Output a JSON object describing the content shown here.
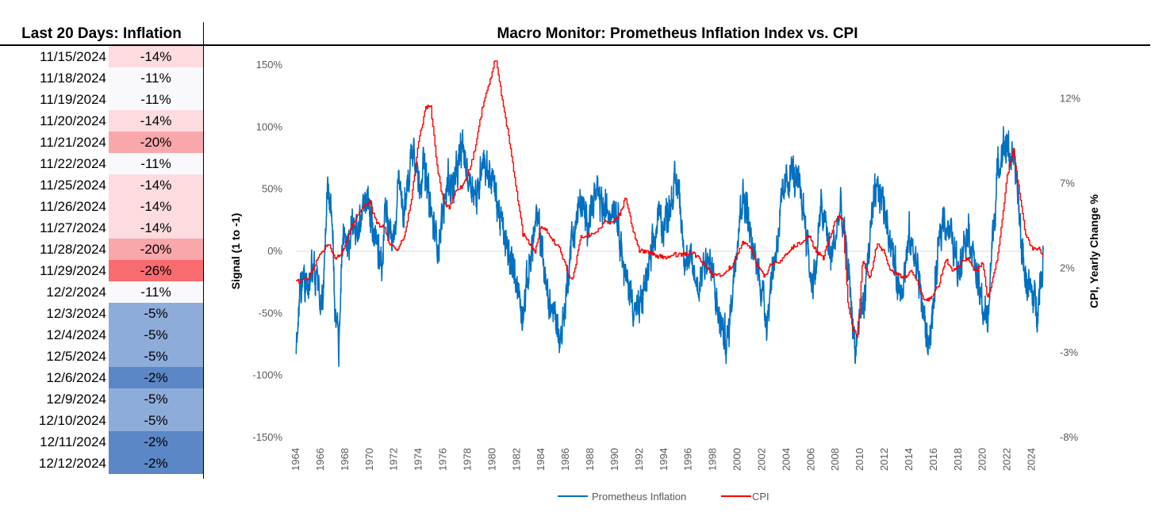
{
  "table": {
    "title": "Last 20 Days: Inflation",
    "rows": [
      {
        "date": "11/15/2024",
        "value": "-14%",
        "color": "#fcdcdf"
      },
      {
        "date": "11/18/2024",
        "value": "-11%",
        "color": "#f9f9fd"
      },
      {
        "date": "11/19/2024",
        "value": "-11%",
        "color": "#f9f9fd"
      },
      {
        "date": "11/20/2024",
        "value": "-14%",
        "color": "#fcdcdf"
      },
      {
        "date": "11/21/2024",
        "value": "-20%",
        "color": "#f9a7aa"
      },
      {
        "date": "11/22/2024",
        "value": "-11%",
        "color": "#f9f9fd"
      },
      {
        "date": "11/25/2024",
        "value": "-14%",
        "color": "#fcdcdf"
      },
      {
        "date": "11/26/2024",
        "value": "-14%",
        "color": "#fcdcdf"
      },
      {
        "date": "11/27/2024",
        "value": "-14%",
        "color": "#fcdcdf"
      },
      {
        "date": "11/28/2024",
        "value": "-20%",
        "color": "#f9a7aa"
      },
      {
        "date": "11/29/2024",
        "value": "-26%",
        "color": "#f86b6e"
      },
      {
        "date": "12/2/2024",
        "value": "-11%",
        "color": "#f9f9fd"
      },
      {
        "date": "12/3/2024",
        "value": "-5%",
        "color": "#8eacd9"
      },
      {
        "date": "12/4/2024",
        "value": "-5%",
        "color": "#8eacd9"
      },
      {
        "date": "12/5/2024",
        "value": "-5%",
        "color": "#8eacd9"
      },
      {
        "date": "12/6/2024",
        "value": "-2%",
        "color": "#5b87c6"
      },
      {
        "date": "12/9/2024",
        "value": "-5%",
        "color": "#8eacd9"
      },
      {
        "date": "12/10/2024",
        "value": "-5%",
        "color": "#8eacd9"
      },
      {
        "date": "12/11/2024",
        "value": "-2%",
        "color": "#5b87c6"
      },
      {
        "date": "12/12/2024",
        "value": "-2%",
        "color": "#5b87c6"
      }
    ]
  },
  "chart_data": {
    "type": "line",
    "title": "Macro Monitor: Prometheus Inflation Index vs. CPI",
    "ylabel_left": "Signal  (1 to -1)",
    "ylabel_right": "CPI, Yearly Change %",
    "x_ticks": [
      "1964",
      "1966",
      "1968",
      "1970",
      "1972",
      "1974",
      "1976",
      "1978",
      "1980",
      "1982",
      "1984",
      "1986",
      "1988",
      "1990",
      "1992",
      "1994",
      "1996",
      "1998",
      "2000",
      "2002",
      "2004",
      "2006",
      "2008",
      "2010",
      "2012",
      "2014",
      "2016",
      "2018",
      "2020",
      "2022",
      "2024"
    ],
    "xlim": [
      1964,
      2025
    ],
    "y_left_ticks": [
      "150%",
      "100%",
      "50%",
      "0%",
      "-50%",
      "-100%",
      "-150%"
    ],
    "y_left_lim": [
      -1.5,
      1.5
    ],
    "y_right_ticks": [
      "12%",
      "7%",
      "2%",
      "-3%",
      "-8%"
    ],
    "y_right_lim": [
      -8,
      14
    ],
    "grid": false,
    "legend_position": "bottom",
    "series": [
      {
        "name": "Prometheus Inflation",
        "color": "#0070c0",
        "axis": "left",
        "x": [
          1964.0,
          1964.3,
          1964.6,
          1965.0,
          1965.4,
          1965.8,
          1966.2,
          1966.6,
          1967.0,
          1967.2,
          1967.5,
          1967.8,
          1968.2,
          1968.6,
          1969.0,
          1969.4,
          1969.8,
          1970.2,
          1970.6,
          1971.0,
          1971.3,
          1971.6,
          1972.0,
          1972.4,
          1972.8,
          1973.2,
          1973.6,
          1974.0,
          1974.4,
          1974.8,
          1975.2,
          1975.6,
          1976.0,
          1976.4,
          1976.8,
          1977.2,
          1977.6,
          1978.0,
          1978.4,
          1978.8,
          1979.2,
          1979.6,
          1980.0,
          1980.4,
          1980.8,
          1981.2,
          1981.6,
          1982.0,
          1982.4,
          1982.8,
          1983.2,
          1983.6,
          1984.0,
          1984.4,
          1984.8,
          1985.2,
          1985.6,
          1986.0,
          1986.4,
          1986.8,
          1987.2,
          1987.6,
          1988.0,
          1988.4,
          1988.8,
          1989.2,
          1989.6,
          1990.0,
          1990.4,
          1990.8,
          1991.2,
          1991.6,
          1992.0,
          1992.4,
          1992.8,
          1993.2,
          1993.6,
          1994.0,
          1994.4,
          1994.8,
          1995.2,
          1995.6,
          1996.0,
          1996.4,
          1996.8,
          1997.2,
          1997.6,
          1998.0,
          1998.4,
          1998.8,
          1999.2,
          1999.6,
          2000.0,
          2000.4,
          2000.8,
          2001.2,
          2001.6,
          2002.0,
          2002.4,
          2002.8,
          2003.2,
          2003.6,
          2004.0,
          2004.4,
          2004.8,
          2005.2,
          2005.6,
          2006.0,
          2006.4,
          2006.8,
          2007.2,
          2007.6,
          2008.0,
          2008.4,
          2008.8,
          2009.2,
          2009.6,
          2010.0,
          2010.4,
          2010.8,
          2011.2,
          2011.6,
          2012.0,
          2012.4,
          2012.8,
          2013.2,
          2013.6,
          2014.0,
          2014.4,
          2014.8,
          2015.2,
          2015.6,
          2016.0,
          2016.4,
          2016.8,
          2017.2,
          2017.6,
          2018.0,
          2018.4,
          2018.8,
          2019.2,
          2019.6,
          2020.0,
          2020.4,
          2020.8,
          2021.2,
          2021.6,
          2022.0,
          2022.4,
          2022.8,
          2023.2,
          2023.6,
          2024.0,
          2024.4,
          2024.8,
          2024.95
        ],
        "y": [
          -0.78,
          -0.3,
          -0.25,
          -0.3,
          -0.1,
          -0.3,
          -0.35,
          0.55,
          0.2,
          -0.5,
          -0.75,
          0.1,
          0.0,
          0.25,
          0.1,
          0.35,
          0.4,
          0.2,
          0.05,
          -0.15,
          0.45,
          0.2,
          0.1,
          0.55,
          0.3,
          0.6,
          0.92,
          0.55,
          0.7,
          0.45,
          0.2,
          0.05,
          0.3,
          0.6,
          0.5,
          0.65,
          0.85,
          0.6,
          0.55,
          0.4,
          0.8,
          0.65,
          0.6,
          0.4,
          0.2,
          0.0,
          -0.1,
          -0.2,
          -0.5,
          -0.3,
          0.0,
          0.25,
          0.1,
          -0.3,
          -0.45,
          -0.55,
          -0.7,
          -0.4,
          0.05,
          0.2,
          0.4,
          0.25,
          0.3,
          0.45,
          0.4,
          0.3,
          0.35,
          0.4,
          0.2,
          -0.2,
          -0.3,
          -0.45,
          -0.5,
          -0.3,
          -0.15,
          0.05,
          0.3,
          0.2,
          0.35,
          0.5,
          0.55,
          0.05,
          -0.1,
          -0.15,
          -0.3,
          -0.1,
          -0.05,
          -0.2,
          -0.5,
          -0.65,
          -0.75,
          -0.3,
          0.15,
          0.45,
          0.35,
          0.0,
          -0.1,
          -0.3,
          -0.55,
          -0.2,
          0.05,
          0.35,
          0.55,
          0.65,
          0.55,
          0.45,
          0.2,
          -0.25,
          -0.15,
          0.35,
          0.2,
          -0.05,
          0.1,
          0.35,
          0.05,
          -0.3,
          -0.8,
          -0.55,
          -0.35,
          0.1,
          0.4,
          0.5,
          0.35,
          0.15,
          -0.1,
          -0.3,
          -0.2,
          0.1,
          0.0,
          -0.2,
          -0.55,
          -0.75,
          -0.45,
          0.0,
          0.3,
          0.2,
          0.05,
          -0.15,
          0.05,
          0.2,
          0.0,
          -0.25,
          -0.45,
          -0.6,
          0.1,
          0.6,
          0.85,
          0.85,
          0.75,
          0.55,
          0.0,
          -0.25,
          -0.35,
          -0.45,
          -0.2,
          0.0
        ],
        "noise": 0.13
      },
      {
        "name": "CPI",
        "color": "#ff0000",
        "axis": "right",
        "x": [
          1964.0,
          1965.0,
          1966.0,
          1966.6,
          1967.2,
          1967.8,
          1968.4,
          1969.2,
          1970.0,
          1970.6,
          1971.2,
          1971.6,
          1972.2,
          1972.8,
          1973.4,
          1974.0,
          1974.6,
          1975.0,
          1975.5,
          1976.0,
          1976.5,
          1977.0,
          1977.5,
          1978.0,
          1978.6,
          1979.2,
          1979.8,
          1980.3,
          1980.8,
          1981.4,
          1982.0,
          1982.5,
          1983.0,
          1983.5,
          1984.0,
          1984.5,
          1985.0,
          1985.6,
          1986.2,
          1986.6,
          1987.2,
          1988.0,
          1988.6,
          1989.2,
          1989.8,
          1990.4,
          1990.9,
          1991.4,
          1992.0,
          1992.6,
          1993.2,
          1994.0,
          1994.8,
          1995.6,
          1996.4,
          1997.2,
          1998.0,
          1998.8,
          1999.6,
          2000.4,
          2001.0,
          2001.6,
          2002.2,
          2002.8,
          2003.4,
          2004.0,
          2004.6,
          2005.2,
          2005.8,
          2006.4,
          2007.0,
          2007.6,
          2008.2,
          2008.6,
          2009.0,
          2009.4,
          2009.8,
          2010.2,
          2010.8,
          2011.4,
          2011.9,
          2012.4,
          2013.0,
          2013.6,
          2014.2,
          2014.8,
          2015.2,
          2015.8,
          2016.4,
          2017.0,
          2017.6,
          2018.2,
          2018.8,
          2019.4,
          2020.0,
          2020.4,
          2020.8,
          2021.2,
          2021.6,
          2022.0,
          2022.5,
          2023.0,
          2023.5,
          2024.0,
          2024.5,
          2024.95
        ],
        "y": [
          1.2,
          1.4,
          2.8,
          3.5,
          2.6,
          3.0,
          4.2,
          5.4,
          5.9,
          4.6,
          4.4,
          3.5,
          3.0,
          3.8,
          6.0,
          9.5,
          11.5,
          11.5,
          8.0,
          6.0,
          5.5,
          6.5,
          6.8,
          7.5,
          9.0,
          11.5,
          13.0,
          14.5,
          12.0,
          9.5,
          6.5,
          4.0,
          3.5,
          3.0,
          4.5,
          4.2,
          3.6,
          3.0,
          1.6,
          1.4,
          3.8,
          4.0,
          4.2,
          4.8,
          4.6,
          5.2,
          6.2,
          4.5,
          3.0,
          3.0,
          2.8,
          2.6,
          2.8,
          2.8,
          2.9,
          2.3,
          1.6,
          1.6,
          2.2,
          3.5,
          3.3,
          2.2,
          1.5,
          2.3,
          2.3,
          2.8,
          3.3,
          3.5,
          4.0,
          3.0,
          2.6,
          4.0,
          5.2,
          4.8,
          0.0,
          -1.6,
          -2.0,
          2.4,
          1.4,
          3.5,
          3.0,
          2.0,
          1.6,
          1.5,
          1.8,
          1.0,
          0.0,
          0.2,
          1.0,
          2.5,
          1.8,
          2.3,
          2.6,
          1.8,
          2.3,
          0.2,
          1.3,
          2.6,
          5.0,
          7.5,
          9.0,
          6.4,
          4.0,
          3.2,
          3.2,
          2.7
        ],
        "noise": 0.25
      }
    ]
  }
}
